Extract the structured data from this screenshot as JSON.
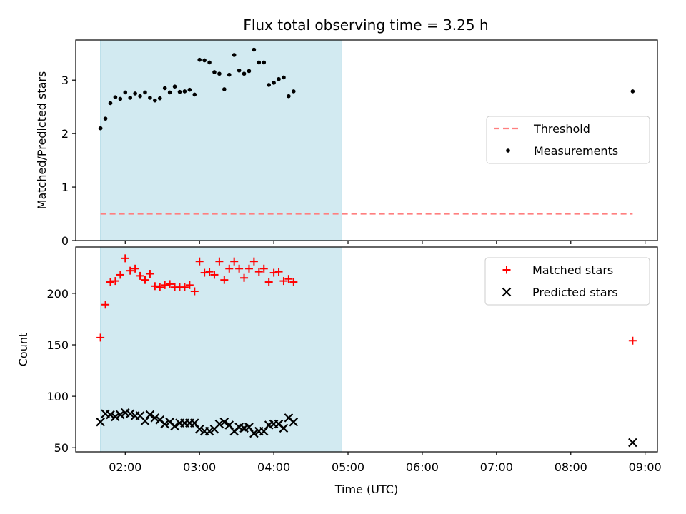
{
  "figure_title": "Flux total observing time = 3.25 h",
  "chart_data": [
    {
      "type": "scatter",
      "ylabel": "Matched/Predicted stars",
      "ylim": [
        0,
        3.75
      ],
      "yticks": [
        0,
        1,
        2,
        3
      ],
      "xlim": [
        "01:20",
        "09:10"
      ],
      "shaded_span": [
        "01:40",
        "04:55"
      ],
      "shade_color": "#add8e6",
      "threshold": {
        "name": "Threshold",
        "value": 0.5,
        "x_range": [
          "01:40",
          "08:50"
        ],
        "color": "#ff7f7f",
        "style": "dashed"
      },
      "legend": {
        "placement": "center-right",
        "entries": [
          "Threshold",
          "Measurements"
        ]
      },
      "series": [
        {
          "name": "Measurements",
          "color": "#000000",
          "marker": "dot",
          "points": [
            [
              "01:40",
              2.1
            ],
            [
              "01:44",
              2.28
            ],
            [
              "01:48",
              2.57
            ],
            [
              "01:52",
              2.68
            ],
            [
              "01:56",
              2.65
            ],
            [
              "02:00",
              2.77
            ],
            [
              "02:04",
              2.67
            ],
            [
              "02:08",
              2.75
            ],
            [
              "02:12",
              2.7
            ],
            [
              "02:16",
              2.77
            ],
            [
              "02:20",
              2.67
            ],
            [
              "02:24",
              2.62
            ],
            [
              "02:28",
              2.66
            ],
            [
              "02:32",
              2.85
            ],
            [
              "02:36",
              2.77
            ],
            [
              "02:40",
              2.88
            ],
            [
              "02:44",
              2.78
            ],
            [
              "02:48",
              2.79
            ],
            [
              "02:52",
              2.82
            ],
            [
              "02:56",
              2.73
            ],
            [
              "03:00",
              3.38
            ],
            [
              "03:04",
              3.37
            ],
            [
              "03:08",
              3.33
            ],
            [
              "03:12",
              3.15
            ],
            [
              "03:16",
              3.12
            ],
            [
              "03:20",
              2.83
            ],
            [
              "03:24",
              3.1
            ],
            [
              "03:28",
              3.47
            ],
            [
              "03:32",
              3.18
            ],
            [
              "03:36",
              3.12
            ],
            [
              "03:40",
              3.17
            ],
            [
              "03:44",
              3.57
            ],
            [
              "03:48",
              3.33
            ],
            [
              "03:52",
              3.33
            ],
            [
              "03:56",
              2.91
            ],
            [
              "04:00",
              2.95
            ],
            [
              "04:04",
              3.02
            ],
            [
              "04:08",
              3.05
            ],
            [
              "04:12",
              2.7
            ],
            [
              "04:16",
              2.79
            ],
            [
              "08:50",
              2.79
            ]
          ]
        }
      ]
    },
    {
      "type": "scatter",
      "xlabel": "Time (UTC)",
      "ylabel": "Count",
      "ylim": [
        46,
        245
      ],
      "yticks": [
        50,
        100,
        150,
        200
      ],
      "xlim": [
        "01:20",
        "09:10"
      ],
      "xticks": [
        "02:00",
        "03:00",
        "04:00",
        "05:00",
        "06:00",
        "07:00",
        "08:00",
        "09:00"
      ],
      "shaded_span": [
        "01:40",
        "04:55"
      ],
      "shade_color": "#add8e6",
      "legend": {
        "placement": "top-right",
        "entries": [
          "Matched stars",
          "Predicted stars"
        ]
      },
      "series": [
        {
          "name": "Matched stars",
          "color": "#ff0000",
          "marker": "plus",
          "points": [
            [
              "01:40",
              157
            ],
            [
              "01:44",
              189
            ],
            [
              "01:48",
              211
            ],
            [
              "01:52",
              212
            ],
            [
              "01:56",
              218
            ],
            [
              "02:00",
              234
            ],
            [
              "02:04",
              222
            ],
            [
              "02:08",
              224
            ],
            [
              "02:12",
              217
            ],
            [
              "02:16",
              213
            ],
            [
              "02:20",
              219
            ],
            [
              "02:24",
              207
            ],
            [
              "02:28",
              206
            ],
            [
              "02:32",
              208
            ],
            [
              "02:36",
              209
            ],
            [
              "02:40",
              206
            ],
            [
              "02:44",
              206
            ],
            [
              "02:48",
              206
            ],
            [
              "02:52",
              208
            ],
            [
              "02:56",
              202
            ],
            [
              "03:00",
              231
            ],
            [
              "03:04",
              220
            ],
            [
              "03:08",
              221
            ],
            [
              "03:12",
              218
            ],
            [
              "03:16",
              231
            ],
            [
              "03:20",
              213
            ],
            [
              "03:24",
              224
            ],
            [
              "03:28",
              231
            ],
            [
              "03:32",
              224
            ],
            [
              "03:36",
              215
            ],
            [
              "03:40",
              224
            ],
            [
              "03:44",
              231
            ],
            [
              "03:48",
              221
            ],
            [
              "03:52",
              224
            ],
            [
              "03:56",
              211
            ],
            [
              "04:00",
              220
            ],
            [
              "04:04",
              221
            ],
            [
              "04:08",
              212
            ],
            [
              "04:12",
              214
            ],
            [
              "04:16",
              211
            ],
            [
              "08:50",
              154
            ]
          ]
        },
        {
          "name": "Predicted stars",
          "color": "#000000",
          "marker": "x",
          "points": [
            [
              "01:40",
              75
            ],
            [
              "01:44",
              83
            ],
            [
              "01:48",
              82
            ],
            [
              "01:52",
              80
            ],
            [
              "01:56",
              82
            ],
            [
              "02:00",
              84
            ],
            [
              "02:04",
              83
            ],
            [
              "02:08",
              81
            ],
            [
              "02:12",
              81
            ],
            [
              "02:16",
              76
            ],
            [
              "02:20",
              82
            ],
            [
              "02:24",
              79
            ],
            [
              "02:28",
              77
            ],
            [
              "02:32",
              73
            ],
            [
              "02:36",
              75
            ],
            [
              "02:40",
              71
            ],
            [
              "02:44",
              74
            ],
            [
              "02:48",
              74
            ],
            [
              "02:52",
              74
            ],
            [
              "02:56",
              74
            ],
            [
              "03:00",
              68
            ],
            [
              "03:04",
              66
            ],
            [
              "03:08",
              66
            ],
            [
              "03:12",
              68
            ],
            [
              "03:16",
              73
            ],
            [
              "03:20",
              75
            ],
            [
              "03:24",
              72
            ],
            [
              "03:28",
              66
            ],
            [
              "03:32",
              70
            ],
            [
              "03:36",
              69
            ],
            [
              "03:40",
              70
            ],
            [
              "03:44",
              64
            ],
            [
              "03:48",
              66
            ],
            [
              "03:52",
              66
            ],
            [
              "03:56",
              72
            ],
            [
              "04:00",
              73
            ],
            [
              "04:04",
              73
            ],
            [
              "04:08",
              69
            ],
            [
              "04:12",
              79
            ],
            [
              "04:16",
              75
            ],
            [
              "08:50",
              55
            ]
          ]
        }
      ]
    }
  ]
}
